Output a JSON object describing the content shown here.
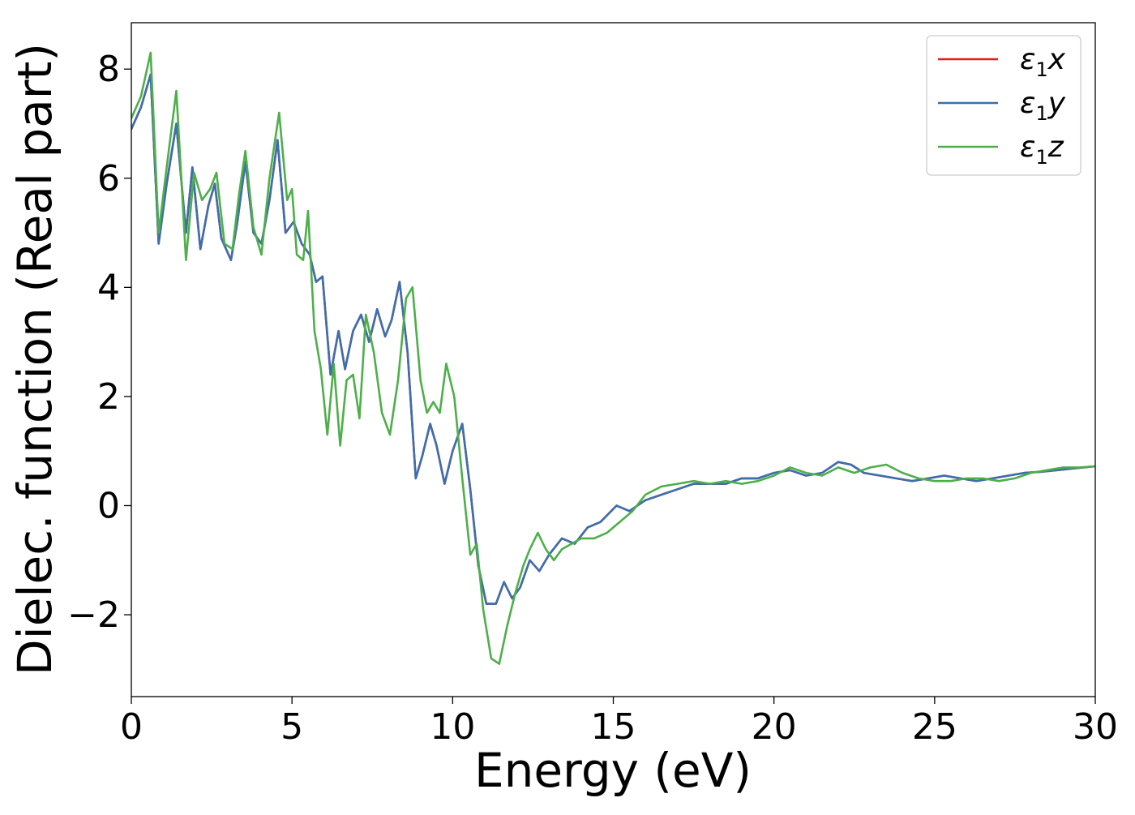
{
  "chart_data": {
    "type": "line",
    "xlabel": "Energy (eV)",
    "ylabel": "Dielec. function (Real part)",
    "xlim": [
      0,
      30
    ],
    "ylim": [
      -3.5,
      8.85
    ],
    "xticks": [
      "0",
      "5",
      "10",
      "15",
      "20",
      "25",
      "30"
    ],
    "yticks": [
      "−2",
      "0",
      "2",
      "4",
      "6",
      "8"
    ],
    "grid": false,
    "legend_position": "top-right",
    "series": [
      {
        "name": "ε1x",
        "color": "#e41a1c",
        "x": [
          0,
          0.3,
          0.6,
          0.85,
          1.1,
          1.4,
          1.7,
          1.9,
          2.15,
          2.4,
          2.6,
          2.8,
          3.1,
          3.3,
          3.55,
          3.8,
          4.05,
          4.3,
          4.55,
          4.8,
          5.05,
          5.3,
          5.55,
          5.75,
          5.95,
          6.2,
          6.45,
          6.65,
          6.9,
          7.15,
          7.4,
          7.65,
          7.9,
          8.1,
          8.35,
          8.6,
          8.85,
          9.05,
          9.3,
          9.5,
          9.75,
          10.0,
          10.3,
          10.55,
          10.8,
          11.05,
          11.35,
          11.6,
          11.85,
          12.1,
          12.4,
          12.7,
          13.0,
          13.4,
          13.8,
          14.2,
          14.6,
          15.1,
          15.5,
          16.0,
          16.5,
          17.0,
          17.5,
          18.0,
          18.5,
          19.0,
          19.5,
          20.0,
          20.5,
          21.0,
          21.5,
          22.0,
          22.4,
          22.8,
          23.3,
          23.8,
          24.3,
          24.8,
          25.3,
          25.8,
          26.3,
          26.8,
          27.3,
          27.8,
          28.3,
          28.8,
          29.3,
          30.0
        ],
        "y": [
          6.9,
          7.3,
          7.9,
          4.8,
          5.9,
          7.0,
          5.0,
          6.2,
          4.7,
          5.5,
          5.9,
          4.9,
          4.5,
          5.2,
          6.3,
          5.0,
          4.8,
          5.6,
          6.7,
          5.0,
          5.2,
          4.8,
          4.6,
          4.1,
          4.2,
          2.4,
          3.2,
          2.5,
          3.2,
          3.5,
          3.0,
          3.6,
          3.1,
          3.4,
          4.1,
          2.8,
          0.5,
          0.9,
          1.5,
          1.1,
          0.4,
          1.0,
          1.5,
          0.3,
          -1.1,
          -1.8,
          -1.8,
          -1.4,
          -1.7,
          -1.5,
          -1.0,
          -1.2,
          -0.9,
          -0.6,
          -0.7,
          -0.4,
          -0.3,
          0.0,
          -0.1,
          0.1,
          0.2,
          0.3,
          0.4,
          0.4,
          0.4,
          0.5,
          0.5,
          0.6,
          0.65,
          0.55,
          0.6,
          0.8,
          0.75,
          0.6,
          0.55,
          0.5,
          0.45,
          0.5,
          0.55,
          0.5,
          0.45,
          0.5,
          0.55,
          0.6,
          0.62,
          0.65,
          0.68,
          0.72
        ]
      },
      {
        "name": "ε1y",
        "color": "#3a6fb0",
        "x": [
          0,
          0.3,
          0.6,
          0.85,
          1.1,
          1.4,
          1.7,
          1.9,
          2.15,
          2.4,
          2.6,
          2.8,
          3.1,
          3.3,
          3.55,
          3.8,
          4.05,
          4.3,
          4.55,
          4.8,
          5.05,
          5.3,
          5.55,
          5.75,
          5.95,
          6.2,
          6.45,
          6.65,
          6.9,
          7.15,
          7.4,
          7.65,
          7.9,
          8.1,
          8.35,
          8.6,
          8.85,
          9.05,
          9.3,
          9.5,
          9.75,
          10.0,
          10.3,
          10.55,
          10.8,
          11.05,
          11.35,
          11.6,
          11.85,
          12.1,
          12.4,
          12.7,
          13.0,
          13.4,
          13.8,
          14.2,
          14.6,
          15.1,
          15.5,
          16.0,
          16.5,
          17.0,
          17.5,
          18.0,
          18.5,
          19.0,
          19.5,
          20.0,
          20.5,
          21.0,
          21.5,
          22.0,
          22.4,
          22.8,
          23.3,
          23.8,
          24.3,
          24.8,
          25.3,
          25.8,
          26.3,
          26.8,
          27.3,
          27.8,
          28.3,
          28.8,
          29.3,
          30.0
        ],
        "y": [
          6.9,
          7.3,
          7.9,
          4.8,
          5.9,
          7.0,
          5.0,
          6.2,
          4.7,
          5.5,
          5.9,
          4.9,
          4.5,
          5.2,
          6.3,
          5.0,
          4.8,
          5.6,
          6.7,
          5.0,
          5.2,
          4.8,
          4.6,
          4.1,
          4.2,
          2.4,
          3.2,
          2.5,
          3.2,
          3.5,
          3.0,
          3.6,
          3.1,
          3.4,
          4.1,
          2.8,
          0.5,
          0.9,
          1.5,
          1.1,
          0.4,
          1.0,
          1.5,
          0.3,
          -1.1,
          -1.8,
          -1.8,
          -1.4,
          -1.7,
          -1.5,
          -1.0,
          -1.2,
          -0.9,
          -0.6,
          -0.7,
          -0.4,
          -0.3,
          0.0,
          -0.1,
          0.1,
          0.2,
          0.3,
          0.4,
          0.4,
          0.4,
          0.5,
          0.5,
          0.6,
          0.65,
          0.55,
          0.6,
          0.8,
          0.75,
          0.6,
          0.55,
          0.5,
          0.45,
          0.5,
          0.55,
          0.5,
          0.45,
          0.5,
          0.55,
          0.6,
          0.62,
          0.65,
          0.68,
          0.72
        ]
      },
      {
        "name": "ε1z",
        "color": "#4daf4a",
        "x": [
          0,
          0.3,
          0.6,
          0.85,
          1.1,
          1.4,
          1.7,
          1.95,
          2.2,
          2.45,
          2.65,
          2.9,
          3.15,
          3.35,
          3.55,
          3.8,
          4.05,
          4.3,
          4.6,
          4.85,
          5.0,
          5.15,
          5.35,
          5.5,
          5.7,
          5.9,
          6.1,
          6.3,
          6.5,
          6.7,
          6.9,
          7.1,
          7.3,
          7.55,
          7.8,
          8.05,
          8.3,
          8.55,
          8.75,
          9.0,
          9.2,
          9.4,
          9.6,
          9.8,
          10.05,
          10.3,
          10.55,
          10.75,
          10.95,
          11.2,
          11.45,
          11.7,
          11.95,
          12.2,
          12.4,
          12.65,
          12.9,
          13.15,
          13.4,
          13.7,
          14.0,
          14.4,
          14.8,
          15.2,
          15.6,
          16.0,
          16.5,
          17.0,
          17.5,
          18.0,
          18.5,
          19.0,
          19.5,
          20.0,
          20.5,
          21.0,
          21.5,
          22.0,
          22.5,
          23.0,
          23.5,
          24.0,
          24.5,
          25.0,
          25.5,
          26.0,
          26.5,
          27.0,
          27.5,
          28.0,
          28.5,
          29.0,
          29.5,
          30.0
        ],
        "y": [
          7.1,
          7.5,
          8.3,
          5.0,
          6.2,
          7.6,
          4.5,
          6.1,
          5.6,
          5.8,
          6.1,
          4.8,
          4.7,
          5.7,
          6.5,
          5.1,
          4.6,
          6.0,
          7.2,
          5.6,
          5.8,
          4.6,
          4.5,
          5.4,
          3.2,
          2.5,
          1.3,
          2.6,
          1.1,
          2.3,
          2.4,
          1.6,
          3.5,
          2.8,
          1.7,
          1.3,
          2.3,
          3.8,
          4.0,
          2.3,
          1.7,
          1.9,
          1.7,
          2.6,
          2.0,
          0.5,
          -0.9,
          -0.7,
          -1.9,
          -2.8,
          -2.9,
          -2.2,
          -1.6,
          -1.1,
          -0.8,
          -0.5,
          -0.8,
          -1.0,
          -0.8,
          -0.7,
          -0.6,
          -0.6,
          -0.5,
          -0.3,
          -0.1,
          0.2,
          0.35,
          0.4,
          0.45,
          0.4,
          0.45,
          0.4,
          0.45,
          0.55,
          0.7,
          0.6,
          0.55,
          0.7,
          0.6,
          0.7,
          0.75,
          0.6,
          0.5,
          0.45,
          0.45,
          0.5,
          0.5,
          0.45,
          0.5,
          0.6,
          0.65,
          0.7,
          0.7,
          0.72
        ]
      }
    ]
  }
}
